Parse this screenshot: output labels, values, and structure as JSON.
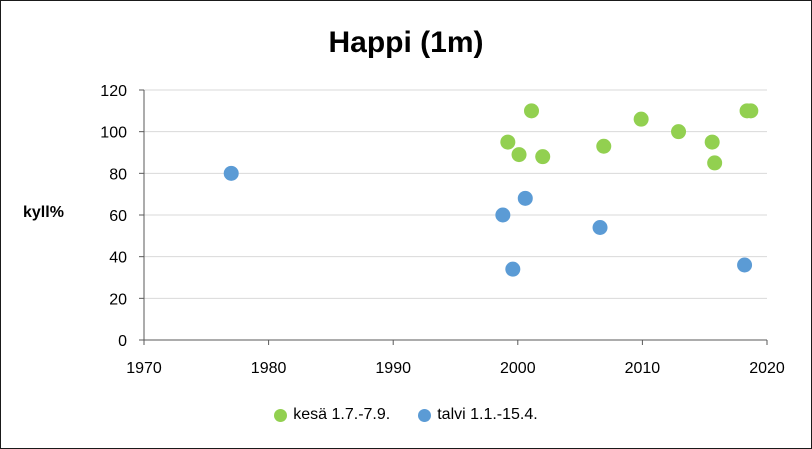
{
  "chart_data": {
    "type": "scatter",
    "title": "Happi (1m)",
    "xlabel": "",
    "ylabel": "kyll%",
    "xlim": [
      1970,
      2020
    ],
    "ylim": [
      0,
      120
    ],
    "xticks": [
      1970,
      1980,
      1990,
      2000,
      2010,
      2020
    ],
    "yticks": [
      0,
      20,
      40,
      60,
      80,
      100,
      120
    ],
    "grid": "horizontal",
    "legend_position": "bottom",
    "series": [
      {
        "name": "kesä 1.7.-7.9.",
        "color": "#92d050",
        "points": [
          {
            "x": 1999.2,
            "y": 95
          },
          {
            "x": 2000.1,
            "y": 89
          },
          {
            "x": 2001.1,
            "y": 110
          },
          {
            "x": 2002.0,
            "y": 88
          },
          {
            "x": 2006.9,
            "y": 93
          },
          {
            "x": 2009.9,
            "y": 106
          },
          {
            "x": 2012.9,
            "y": 100
          },
          {
            "x": 2015.6,
            "y": 95
          },
          {
            "x": 2015.8,
            "y": 85
          },
          {
            "x": 2018.4,
            "y": 110
          },
          {
            "x": 2018.7,
            "y": 110
          }
        ]
      },
      {
        "name": "talvi 1.1.-15.4.",
        "color": "#5b9bd5",
        "points": [
          {
            "x": 1977.0,
            "y": 80
          },
          {
            "x": 1998.8,
            "y": 60
          },
          {
            "x": 1999.6,
            "y": 34
          },
          {
            "x": 2000.6,
            "y": 68
          },
          {
            "x": 2006.6,
            "y": 54
          },
          {
            "x": 2018.2,
            "y": 36
          }
        ]
      }
    ]
  }
}
